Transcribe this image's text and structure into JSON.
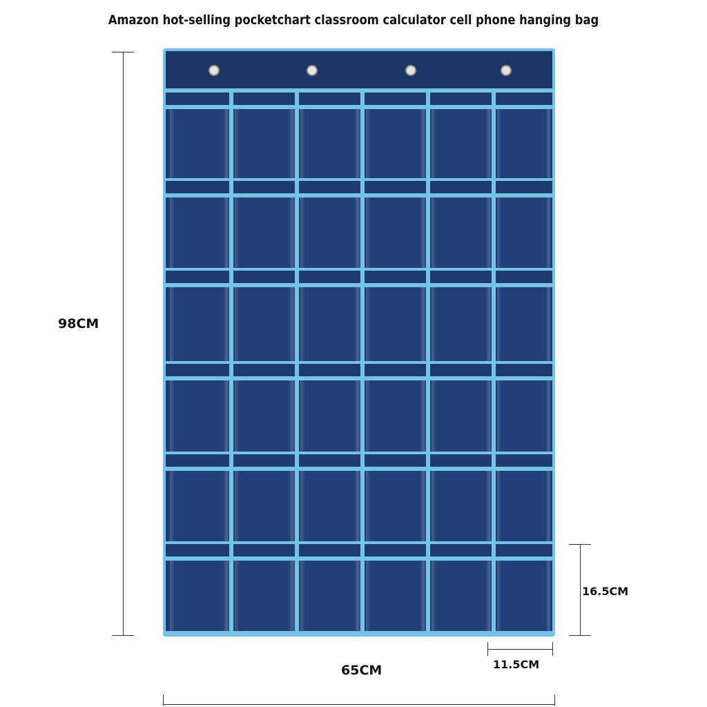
{
  "title": "Amazon hot-selling pocketchart classroom calculator cell phone hanging bag",
  "product": {
    "columns": 6,
    "rows": 6,
    "grommets": 4,
    "colors": {
      "fabric": "#1f3b70",
      "trim": "#74c4e6"
    }
  },
  "dimensions": {
    "height": "98CM",
    "width": "65CM",
    "pocket_height": "16.5CM",
    "pocket_width": "11.5CM"
  }
}
